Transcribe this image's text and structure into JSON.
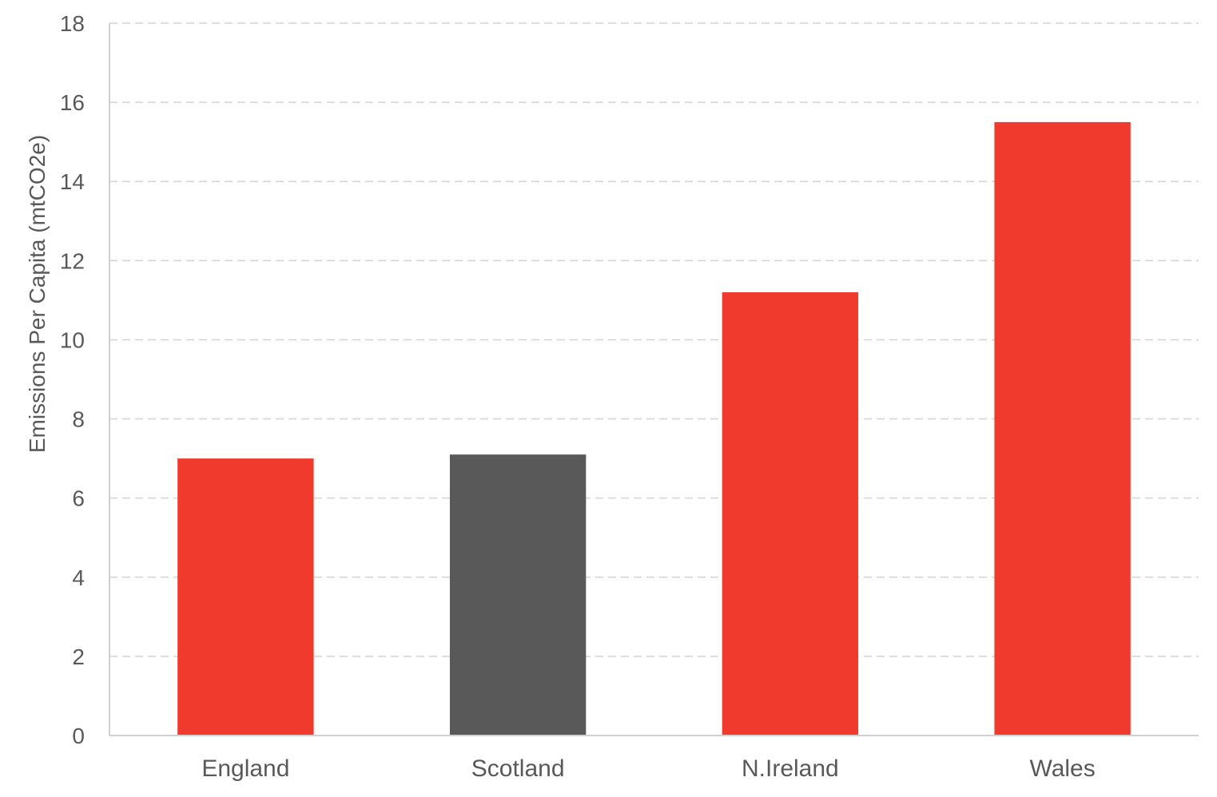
{
  "chart_data": {
    "type": "bar",
    "title": "",
    "xlabel": "",
    "ylabel": "Emissions Per Capita (mtCO2e)",
    "categories": [
      "England",
      "Scotland",
      "N.Ireland",
      "Wales"
    ],
    "values": [
      7.0,
      7.1,
      11.2,
      15.5
    ],
    "bar_colors": [
      "#F03A2E",
      "#595959",
      "#F03A2E",
      "#F03A2E"
    ],
    "ylim": [
      0,
      18
    ],
    "yticks": [
      0,
      2,
      4,
      6,
      8,
      10,
      12,
      14,
      16,
      18
    ],
    "grid": true,
    "grid_style": "dashed",
    "legend": "none"
  }
}
